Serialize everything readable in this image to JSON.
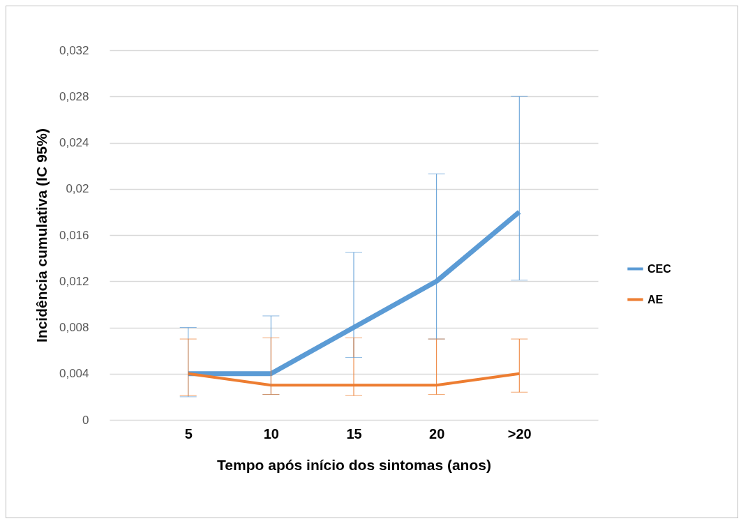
{
  "chart_data": {
    "type": "line",
    "xlabel": "Tempo após início dos sintomas (anos)",
    "ylabel": "Incidência cumulativa (IC 95%)",
    "categories": [
      "5",
      "10",
      "15",
      "20",
      ">20"
    ],
    "series": [
      {
        "name": "CEC",
        "color": "#5b9bd5",
        "values": [
          0.004,
          0.004,
          0.008,
          0.012,
          0.018
        ],
        "errors": [
          [
            0.002,
            0.008
          ],
          [
            0.0022,
            0.009
          ],
          [
            0.0054,
            0.0145
          ],
          [
            0.007,
            0.0213
          ],
          [
            0.0121,
            0.028
          ]
        ]
      },
      {
        "name": "AE",
        "color": "#ed7d31",
        "values": [
          0.004,
          0.003,
          0.003,
          0.003,
          0.004
        ],
        "errors": [
          [
            0.0021,
            0.007
          ],
          [
            0.0022,
            0.0071
          ],
          [
            0.0021,
            0.0071
          ],
          [
            0.0022,
            0.007
          ],
          [
            0.0024,
            0.007
          ]
        ]
      }
    ],
    "ylim": [
      0,
      0.032
    ],
    "yticks": [
      0,
      {
        "value": 0.004,
        "label": "0,004"
      },
      {
        "value": 0.008,
        "label": "0,008"
      },
      {
        "value": 0.012,
        "label": "0,012"
      },
      {
        "value": 0.016,
        "label": "0,016"
      },
      {
        "value": 0.02,
        "label": "0,02"
      },
      {
        "value": 0.024,
        "label": "0,024"
      },
      {
        "value": 0.028,
        "label": "0,028"
      },
      {
        "value": 0.032,
        "label": "0,032"
      }
    ],
    "grid": "y",
    "legend": "right"
  }
}
